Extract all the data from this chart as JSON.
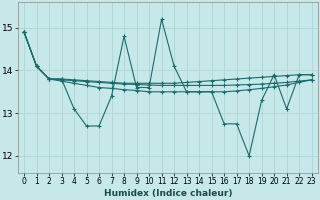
{
  "xlabel": "Humidex (Indice chaleur)",
  "background_color": "#c6e8e8",
  "grid_color": "#afd4d4",
  "line_color": "#1a6b6b",
  "xlim": [
    -0.5,
    23.5
  ],
  "ylim": [
    11.6,
    15.6
  ],
  "yticks": [
    12,
    13,
    14,
    15
  ],
  "xticks": [
    0,
    1,
    2,
    3,
    4,
    5,
    6,
    7,
    8,
    9,
    10,
    11,
    12,
    13,
    14,
    15,
    16,
    17,
    18,
    19,
    20,
    21,
    22,
    23
  ],
  "series": [
    [
      14.9,
      14.1,
      13.8,
      13.8,
      13.1,
      12.7,
      12.7,
      13.4,
      14.8,
      13.6,
      13.6,
      15.2,
      14.1,
      13.5,
      13.5,
      13.5,
      12.75,
      12.75,
      12.0,
      13.3,
      13.9,
      13.1,
      13.9,
      13.9
    ],
    [
      14.9,
      14.1,
      13.8,
      13.8,
      13.78,
      13.76,
      13.74,
      13.72,
      13.7,
      13.7,
      13.7,
      13.7,
      13.7,
      13.72,
      13.74,
      13.76,
      13.78,
      13.8,
      13.82,
      13.84,
      13.86,
      13.88,
      13.9,
      13.9
    ],
    [
      14.9,
      14.1,
      13.8,
      13.78,
      13.76,
      13.74,
      13.72,
      13.7,
      13.68,
      13.67,
      13.66,
      13.65,
      13.65,
      13.65,
      13.65,
      13.65,
      13.65,
      13.66,
      13.67,
      13.68,
      13.7,
      13.72,
      13.75,
      13.78
    ],
    [
      14.9,
      14.1,
      13.8,
      13.75,
      13.7,
      13.65,
      13.6,
      13.58,
      13.55,
      13.53,
      13.5,
      13.5,
      13.5,
      13.5,
      13.5,
      13.5,
      13.5,
      13.52,
      13.55,
      13.58,
      13.62,
      13.66,
      13.72,
      13.78
    ]
  ]
}
